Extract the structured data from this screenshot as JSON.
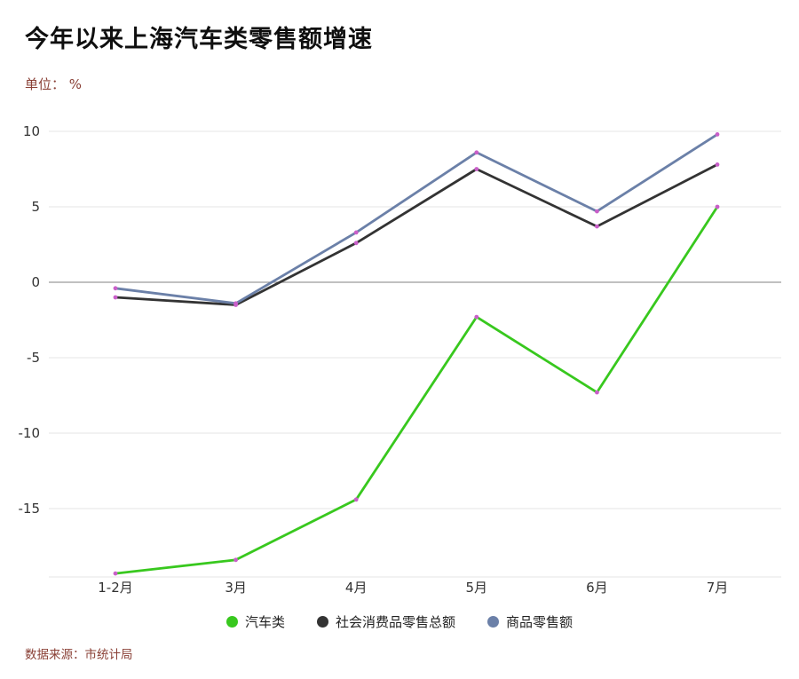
{
  "header": {
    "title": "今年以来上海汽车类零售额增速",
    "unit": "单位： %"
  },
  "footer": {
    "source": "数据来源：市统计局"
  },
  "chart_data": {
    "type": "line",
    "title": "今年以来上海汽车类零售额增速",
    "ylabel": "%",
    "xlabel": "",
    "categories": [
      "1-2月",
      "3月",
      "4月",
      "5月",
      "6月",
      "7月"
    ],
    "series": [
      {
        "name": "汽车类",
        "color": "#38c81e",
        "values": [
          -19.3,
          -18.4,
          -14.4,
          -2.3,
          -7.3,
          5.0
        ]
      },
      {
        "name": "社会消费品零售总额",
        "color": "#333333",
        "values": [
          -1.0,
          -1.5,
          2.6,
          7.5,
          3.7,
          7.8
        ]
      },
      {
        "name": "商品零售额",
        "color": "#6b80a8",
        "values": [
          -0.4,
          -1.4,
          3.3,
          8.6,
          4.7,
          9.8
        ]
      }
    ],
    "yticks": [
      10,
      5,
      0,
      -5,
      -10,
      -15
    ],
    "ylim": [
      -19.5,
      11
    ],
    "grid": true,
    "legend_position": "bottom",
    "marker_color": "#c95fc9",
    "grid_color": "#e4e4e4",
    "zero_line_color": "#9a9a9a"
  }
}
